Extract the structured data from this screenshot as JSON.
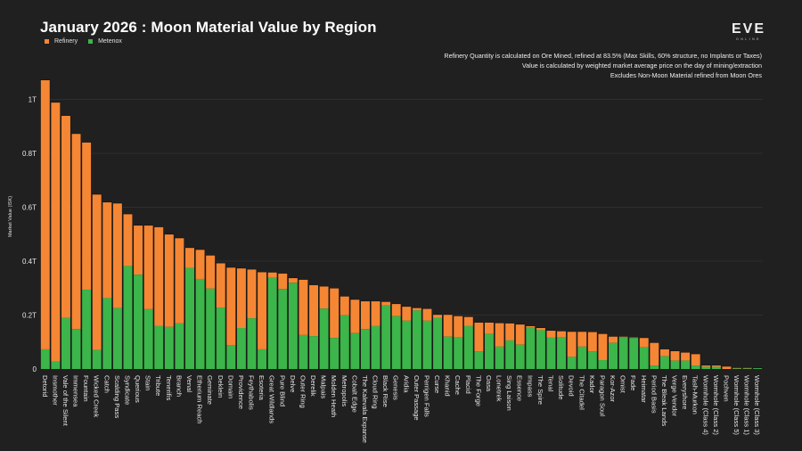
{
  "header": {
    "title": "January 2026 : Moon Material Value by Region",
    "logo_text": "EVE",
    "logo_subtext": "ONLINE"
  },
  "legend": {
    "items": [
      {
        "label": "Refinery",
        "color": "#f58634"
      },
      {
        "label": "Metenox",
        "color": "#3cb54a"
      }
    ]
  },
  "notes": [
    "Refinery Quantity is calculated on Ore Mined, refined at 83.5% (Max Skills, 60% structure, no Implants or Taxes)",
    "Value is calculated by weighted market average price on the day of mining/extraction",
    "Excludes Non-Moon Material refined from Moon Ores"
  ],
  "chart_data": {
    "type": "bar",
    "stacked": true,
    "title": "January 2026 : Moon Material Value by Region",
    "xlabel": "",
    "ylabel": "Market Value (ISK)",
    "ylim": [
      0,
      1.1
    ],
    "y_unit": "T",
    "yticks": [
      0,
      0.2,
      0.4,
      0.6,
      0.8,
      1.0
    ],
    "ytick_labels": [
      "0",
      "0.2T",
      "0.4T",
      "0.6T",
      "0.8T",
      "1T"
    ],
    "grid": true,
    "legend_position": "top-left",
    "categories": [
      "Detorid",
      "Insmother",
      "Vale of the Silent",
      "Immensea",
      "Fountain",
      "Wicked Creek",
      "Catch",
      "Scalding Pass",
      "Syndicate",
      "Querious",
      "Stain",
      "Tribute",
      "Tenerifis",
      "Branch",
      "Venal",
      "Etherium Reach",
      "Geminate",
      "Deklein",
      "Domain",
      "Providence",
      "Feythabolis",
      "Esoteria",
      "Great Wildlands",
      "Pure Blind",
      "Delve",
      "Outer Ring",
      "Derelik",
      "Malpais",
      "Molden Heath",
      "Metropolis",
      "Cobalt Edge",
      "The Kalevala Expanse",
      "Cloud Ring",
      "Black Rise",
      "Genesis",
      "Aridia",
      "Outer Passage",
      "Perrigen Falls",
      "Curse",
      "Khanid",
      "Cache",
      "Placid",
      "The Forge",
      "Oasa",
      "Lonetrek",
      "Sing Laison",
      "Essence",
      "Impass",
      "The Spire",
      "Tenal",
      "Solitude",
      "Devoid",
      "The Citadel",
      "Kador",
      "Paragon Soul",
      "Kor-Azor",
      "Omist",
      "Fade",
      "Heimatar",
      "Period Basis",
      "The Bleak Lands",
      "Verge Vendor",
      "Everyshore",
      "Tash-Murkon",
      "Wormhole (Class 4)",
      "Wormhole (Class 2)",
      "Pochven",
      "Wormhole (Class 5)",
      "Wormhole (Class 1)",
      "Wormhole (Class 3)"
    ],
    "series": [
      {
        "name": "Metenox",
        "color": "#3cb54a",
        "values": [
          0.073,
          0.027,
          0.189,
          0.148,
          0.294,
          0.07,
          0.263,
          0.226,
          0.382,
          0.35,
          0.222,
          0.159,
          0.156,
          0.169,
          0.375,
          0.334,
          0.298,
          0.228,
          0.088,
          0.152,
          0.188,
          0.073,
          0.338,
          0.297,
          0.32,
          0.126,
          0.122,
          0.224,
          0.115,
          0.199,
          0.133,
          0.148,
          0.159,
          0.236,
          0.196,
          0.179,
          0.217,
          0.179,
          0.19,
          0.12,
          0.119,
          0.159,
          0.065,
          0.13,
          0.083,
          0.106,
          0.09,
          0.154,
          0.144,
          0.116,
          0.119,
          0.045,
          0.083,
          0.065,
          0.033,
          0.097,
          0.118,
          0.115,
          0.08,
          0.013,
          0.047,
          0.031,
          0.031,
          0.013,
          0.008,
          0.008,
          0.0,
          0.002,
          0.002,
          0.003
        ]
      },
      {
        "name": "Refinery",
        "color": "#f58634",
        "values": [
          0.998,
          0.961,
          0.75,
          0.724,
          0.546,
          0.577,
          0.355,
          0.388,
          0.192,
          0.182,
          0.31,
          0.367,
          0.343,
          0.316,
          0.074,
          0.108,
          0.123,
          0.164,
          0.288,
          0.221,
          0.181,
          0.286,
          0.02,
          0.057,
          0.017,
          0.205,
          0.189,
          0.082,
          0.184,
          0.07,
          0.124,
          0.103,
          0.092,
          0.013,
          0.045,
          0.052,
          0.009,
          0.044,
          0.011,
          0.081,
          0.077,
          0.034,
          0.107,
          0.042,
          0.087,
          0.063,
          0.075,
          0.005,
          0.008,
          0.026,
          0.021,
          0.093,
          0.055,
          0.072,
          0.097,
          0.023,
          0.002,
          0.002,
          0.035,
          0.084,
          0.026,
          0.035,
          0.03,
          0.042,
          0.005,
          0.005,
          0.009,
          0.002,
          0.002,
          0.0
        ]
      }
    ]
  }
}
